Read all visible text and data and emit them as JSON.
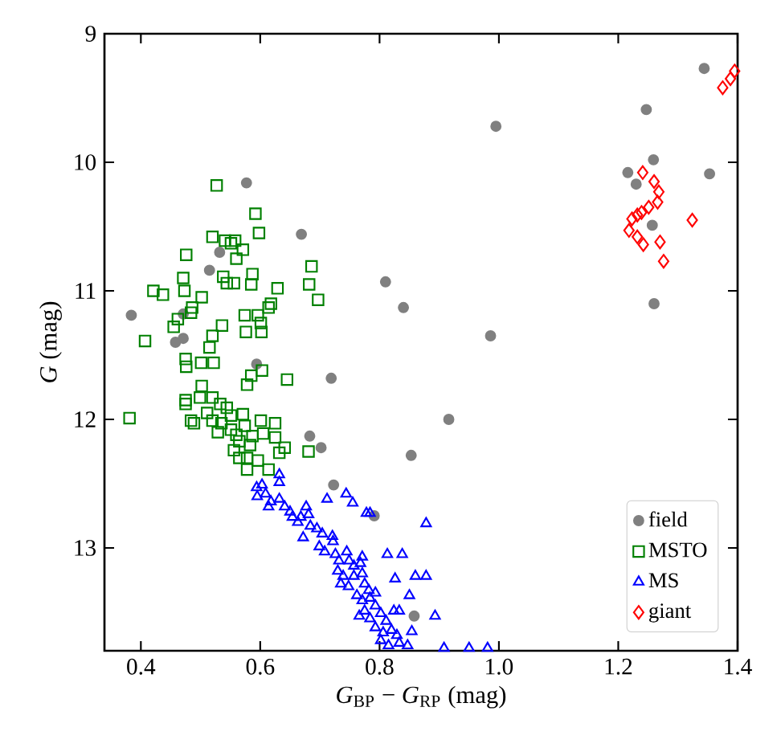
{
  "chart_data": {
    "type": "scatter",
    "xlabel": "*G*$_{BP}$ − *G*$_{RP}$ (mag)",
    "ylabel": "*G* (mag)",
    "xlim": [
      0.339,
      1.4
    ],
    "ylim": [
      13.8,
      9
    ],
    "xticks": [
      0.4,
      0.6,
      0.8,
      {
        "value": 1,
        "label": "1.0"
      },
      1.2,
      1.4
    ],
    "yticks": [
      9,
      10,
      11,
      12,
      13
    ],
    "legend": "bottom right",
    "grid": false,
    "series": [
      {
        "name": "field",
        "color": "#808080",
        "marker": "circle",
        "x": [
          1.344,
          1.247,
          0.995,
          1.259,
          1.216,
          1.353,
          1.23,
          1.257,
          1.26,
          0.577,
          0.669,
          0.532,
          0.515,
          0.81,
          0.84,
          0.384,
          0.471,
          0.462,
          0.458,
          0.471,
          0.594,
          0.719,
          0.683,
          0.702,
          0.916,
          0.986,
          0.853,
          0.723,
          0.791,
          0.858
        ],
        "values": [
          9.27,
          9.59,
          9.72,
          9.98,
          10.08,
          10.09,
          10.17,
          10.49,
          11.1,
          10.16,
          10.56,
          10.7,
          10.84,
          10.93,
          11.13,
          11.19,
          11.18,
          null,
          11.4,
          11.37,
          11.57,
          11.68,
          12.13,
          12.22,
          12.0,
          11.35,
          12.28,
          12.51,
          12.75,
          13.53
        ]
      },
      {
        "name": "MSTO",
        "color": "#008000",
        "marker": "square",
        "x": [
          0.527,
          0.592,
          0.598,
          0.52,
          0.541,
          0.551,
          0.558,
          0.571,
          0.476,
          0.686,
          0.56,
          0.538,
          0.544,
          0.587,
          0.556,
          0.585,
          0.682,
          0.697,
          0.629,
          0.471,
          0.473,
          0.421,
          0.437,
          0.502,
          0.486,
          0.484,
          0.462,
          0.455,
          0.618,
          0.614,
          0.596,
          0.601,
          0.574,
          0.536,
          0.576,
          0.602,
          0.407,
          0.52,
          0.515,
          0.475,
          0.476,
          0.501,
          0.522,
          0.585,
          0.603,
          0.645,
          0.578,
          0.502,
          0.499,
          0.475,
          0.475,
          0.381,
          0.52,
          0.533,
          0.484,
          0.489,
          0.511,
          0.52,
          0.535,
          0.529,
          0.551,
          0.551,
          0.571,
          0.544,
          0.56,
          0.565,
          0.583,
          0.587,
          0.601,
          0.605,
          0.625,
          0.625,
          0.641,
          0.632,
          0.681,
          0.556,
          0.565,
          0.578,
          0.578,
          0.614,
          0.596,
          0.574
        ],
        "values": [
          10.18,
          10.4,
          10.55,
          10.58,
          10.61,
          10.63,
          10.61,
          10.68,
          10.72,
          10.81,
          10.75,
          10.89,
          10.94,
          10.87,
          10.94,
          10.95,
          10.95,
          11.07,
          10.98,
          10.9,
          11.0,
          11.0,
          11.03,
          11.05,
          11.13,
          11.17,
          11.22,
          11.28,
          11.1,
          11.13,
          11.19,
          11.25,
          11.19,
          11.27,
          11.32,
          11.32,
          11.39,
          11.35,
          11.44,
          11.53,
          11.59,
          11.56,
          11.56,
          11.66,
          11.62,
          11.69,
          11.73,
          11.74,
          11.83,
          11.85,
          11.88,
          11.99,
          11.83,
          11.88,
          12.01,
          12.03,
          11.95,
          12.01,
          12.03,
          12.1,
          11.97,
          12.08,
          11.96,
          11.91,
          12.12,
          12.17,
          12.2,
          12.13,
          12.01,
          12.11,
          12.03,
          12.14,
          12.22,
          12.26,
          12.25,
          12.24,
          12.3,
          12.3,
          12.39,
          12.39,
          12.32,
          12.05
        ]
      },
      {
        "name": "MS",
        "color": "#0000ff",
        "marker": "triangle",
        "x": [
          0.632,
          0.632,
          0.594,
          0.603,
          0.595,
          0.609,
          0.618,
          0.614,
          0.632,
          0.641,
          0.65,
          0.654,
          0.668,
          0.663,
          0.677,
          0.681,
          0.712,
          0.744,
          0.755,
          0.778,
          0.784,
          0.684,
          0.672,
          0.695,
          0.704,
          0.721,
          0.722,
          0.699,
          0.708,
          0.726,
          0.732,
          0.745,
          0.749,
          0.73,
          0.739,
          0.757,
          0.768,
          0.735,
          0.748,
          0.757,
          0.771,
          0.775,
          0.782,
          0.762,
          0.771,
          0.784,
          0.793,
          0.775,
          0.793,
          0.766,
          0.784,
          0.802,
          0.811,
          0.793,
          0.806,
          0.82,
          0.829,
          0.802,
          0.815,
          0.833,
          0.847,
          0.824,
          0.833,
          0.813,
          0.838,
          0.826,
          0.86,
          0.878,
          0.85,
          0.893,
          0.854,
          0.878,
          0.908,
          0.95,
          0.981,
          0.771
        ],
        "values": [
          12.43,
          12.49,
          12.53,
          12.51,
          12.6,
          12.58,
          12.64,
          12.68,
          12.62,
          12.68,
          12.72,
          12.76,
          12.76,
          12.8,
          12.68,
          12.74,
          12.62,
          12.58,
          12.65,
          12.73,
          12.73,
          12.83,
          12.92,
          12.85,
          12.89,
          12.91,
          12.95,
          12.99,
          13.03,
          13.05,
          13.1,
          13.03,
          13.1,
          13.18,
          13.22,
          13.14,
          13.12,
          13.28,
          13.3,
          13.22,
          13.2,
          13.28,
          13.33,
          13.37,
          13.41,
          13.39,
          13.35,
          13.49,
          13.45,
          13.53,
          13.55,
          13.51,
          13.57,
          13.62,
          13.66,
          13.64,
          13.68,
          13.72,
          13.76,
          13.74,
          13.76,
          13.49,
          13.49,
          13.05,
          13.05,
          13.24,
          13.22,
          13.22,
          13.37,
          13.53,
          13.65,
          12.81,
          13.78,
          13.78,
          13.78,
          13.07
        ]
      },
      {
        "name": "giant",
        "color": "#ff0000",
        "marker": "diamond",
        "x": [
          1.241,
          1.26,
          1.268,
          1.266,
          1.251,
          1.232,
          1.239,
          1.223,
          1.324,
          1.218,
          1.232,
          1.242,
          1.27,
          1.276,
          1.375,
          1.388,
          1.395
        ],
        "values": [
          10.08,
          10.15,
          10.23,
          10.31,
          10.35,
          10.41,
          10.39,
          10.44,
          10.45,
          10.53,
          10.58,
          10.64,
          10.62,
          10.77,
          9.42,
          9.35,
          9.29
        ]
      }
    ]
  }
}
